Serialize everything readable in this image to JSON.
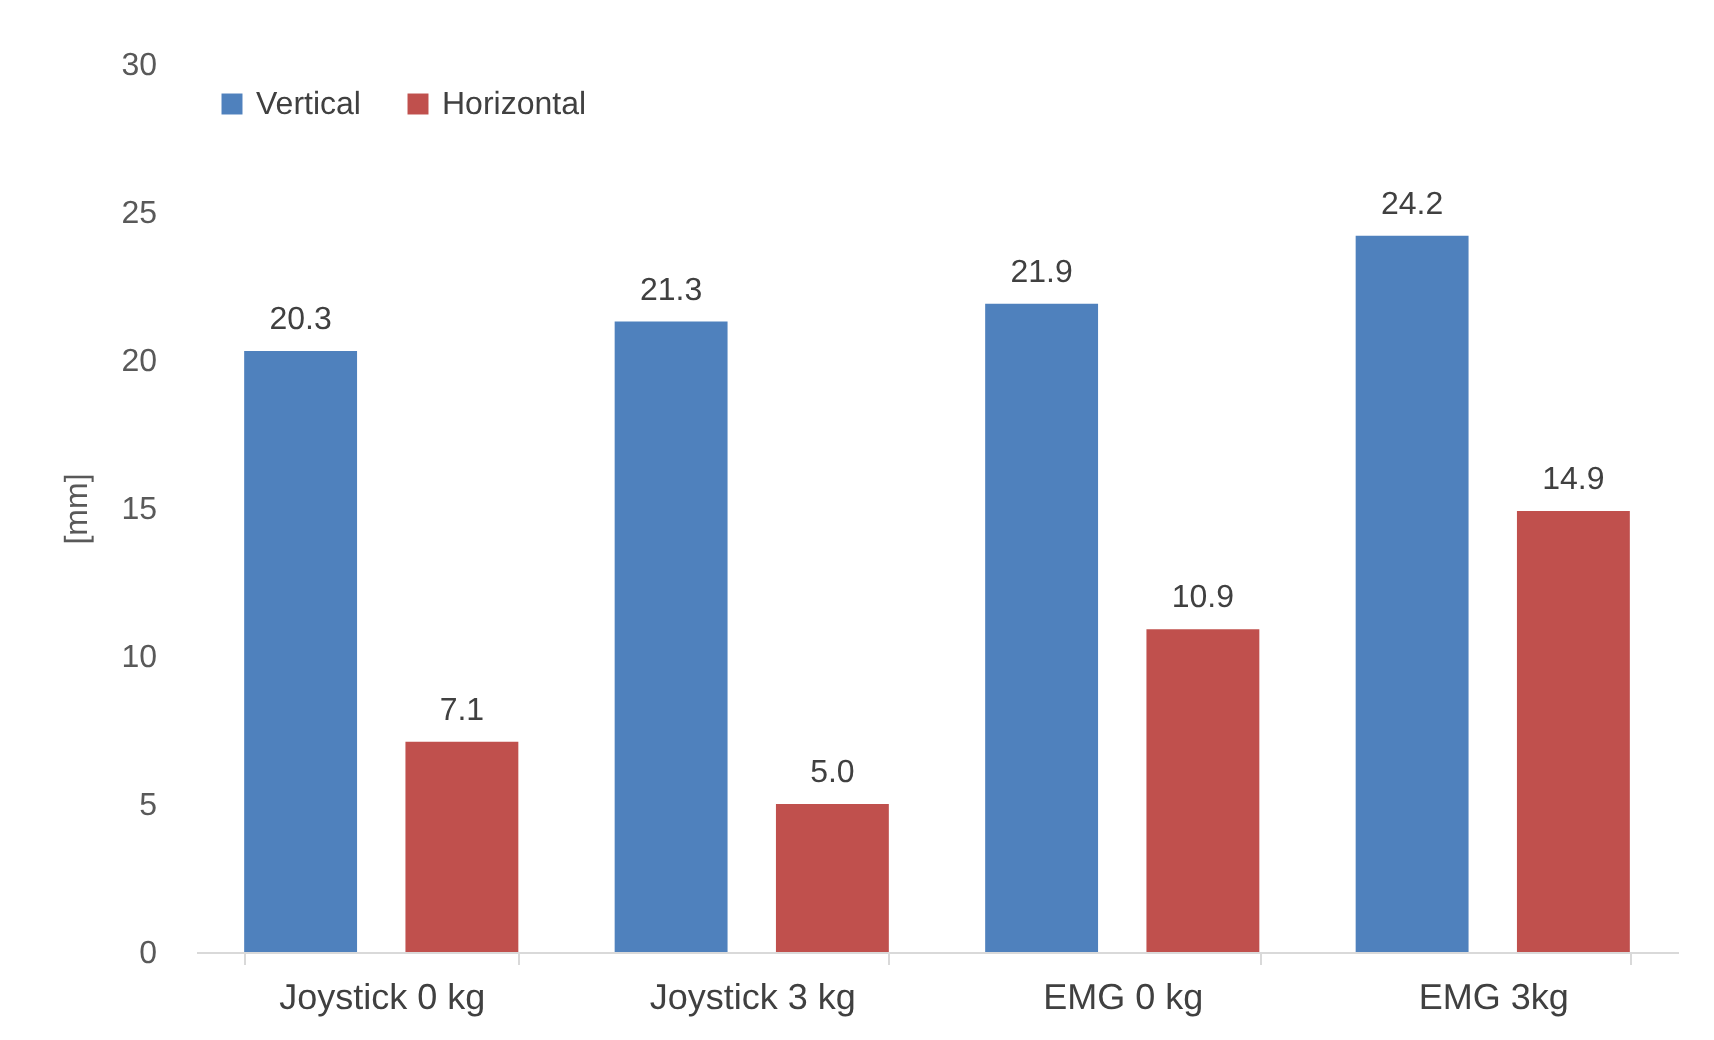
{
  "chart_data": {
    "type": "bar",
    "ylabel": "[mm]",
    "categories": [
      "Joystick 0 kg",
      "Joystick 3 kg",
      "EMG 0 kg",
      "EMG 3kg"
    ],
    "series": [
      {
        "name": "Vertical",
        "color": "#4f81bd",
        "values": [
          20.3,
          21.3,
          21.9,
          24.2
        ],
        "value_labels": [
          "20.3",
          "21.3",
          "21.9",
          "24.2"
        ]
      },
      {
        "name": "Horizontal",
        "color": "#c0504d",
        "values": [
          7.1,
          5.0,
          10.9,
          14.9
        ],
        "value_labels": [
          "7.1",
          "5.0",
          "10.9",
          "14.9"
        ]
      }
    ],
    "ylim": [
      0,
      30
    ],
    "yticks": [
      0,
      5,
      10,
      15,
      20,
      25,
      30
    ],
    "grid": false,
    "legend": "top left"
  }
}
